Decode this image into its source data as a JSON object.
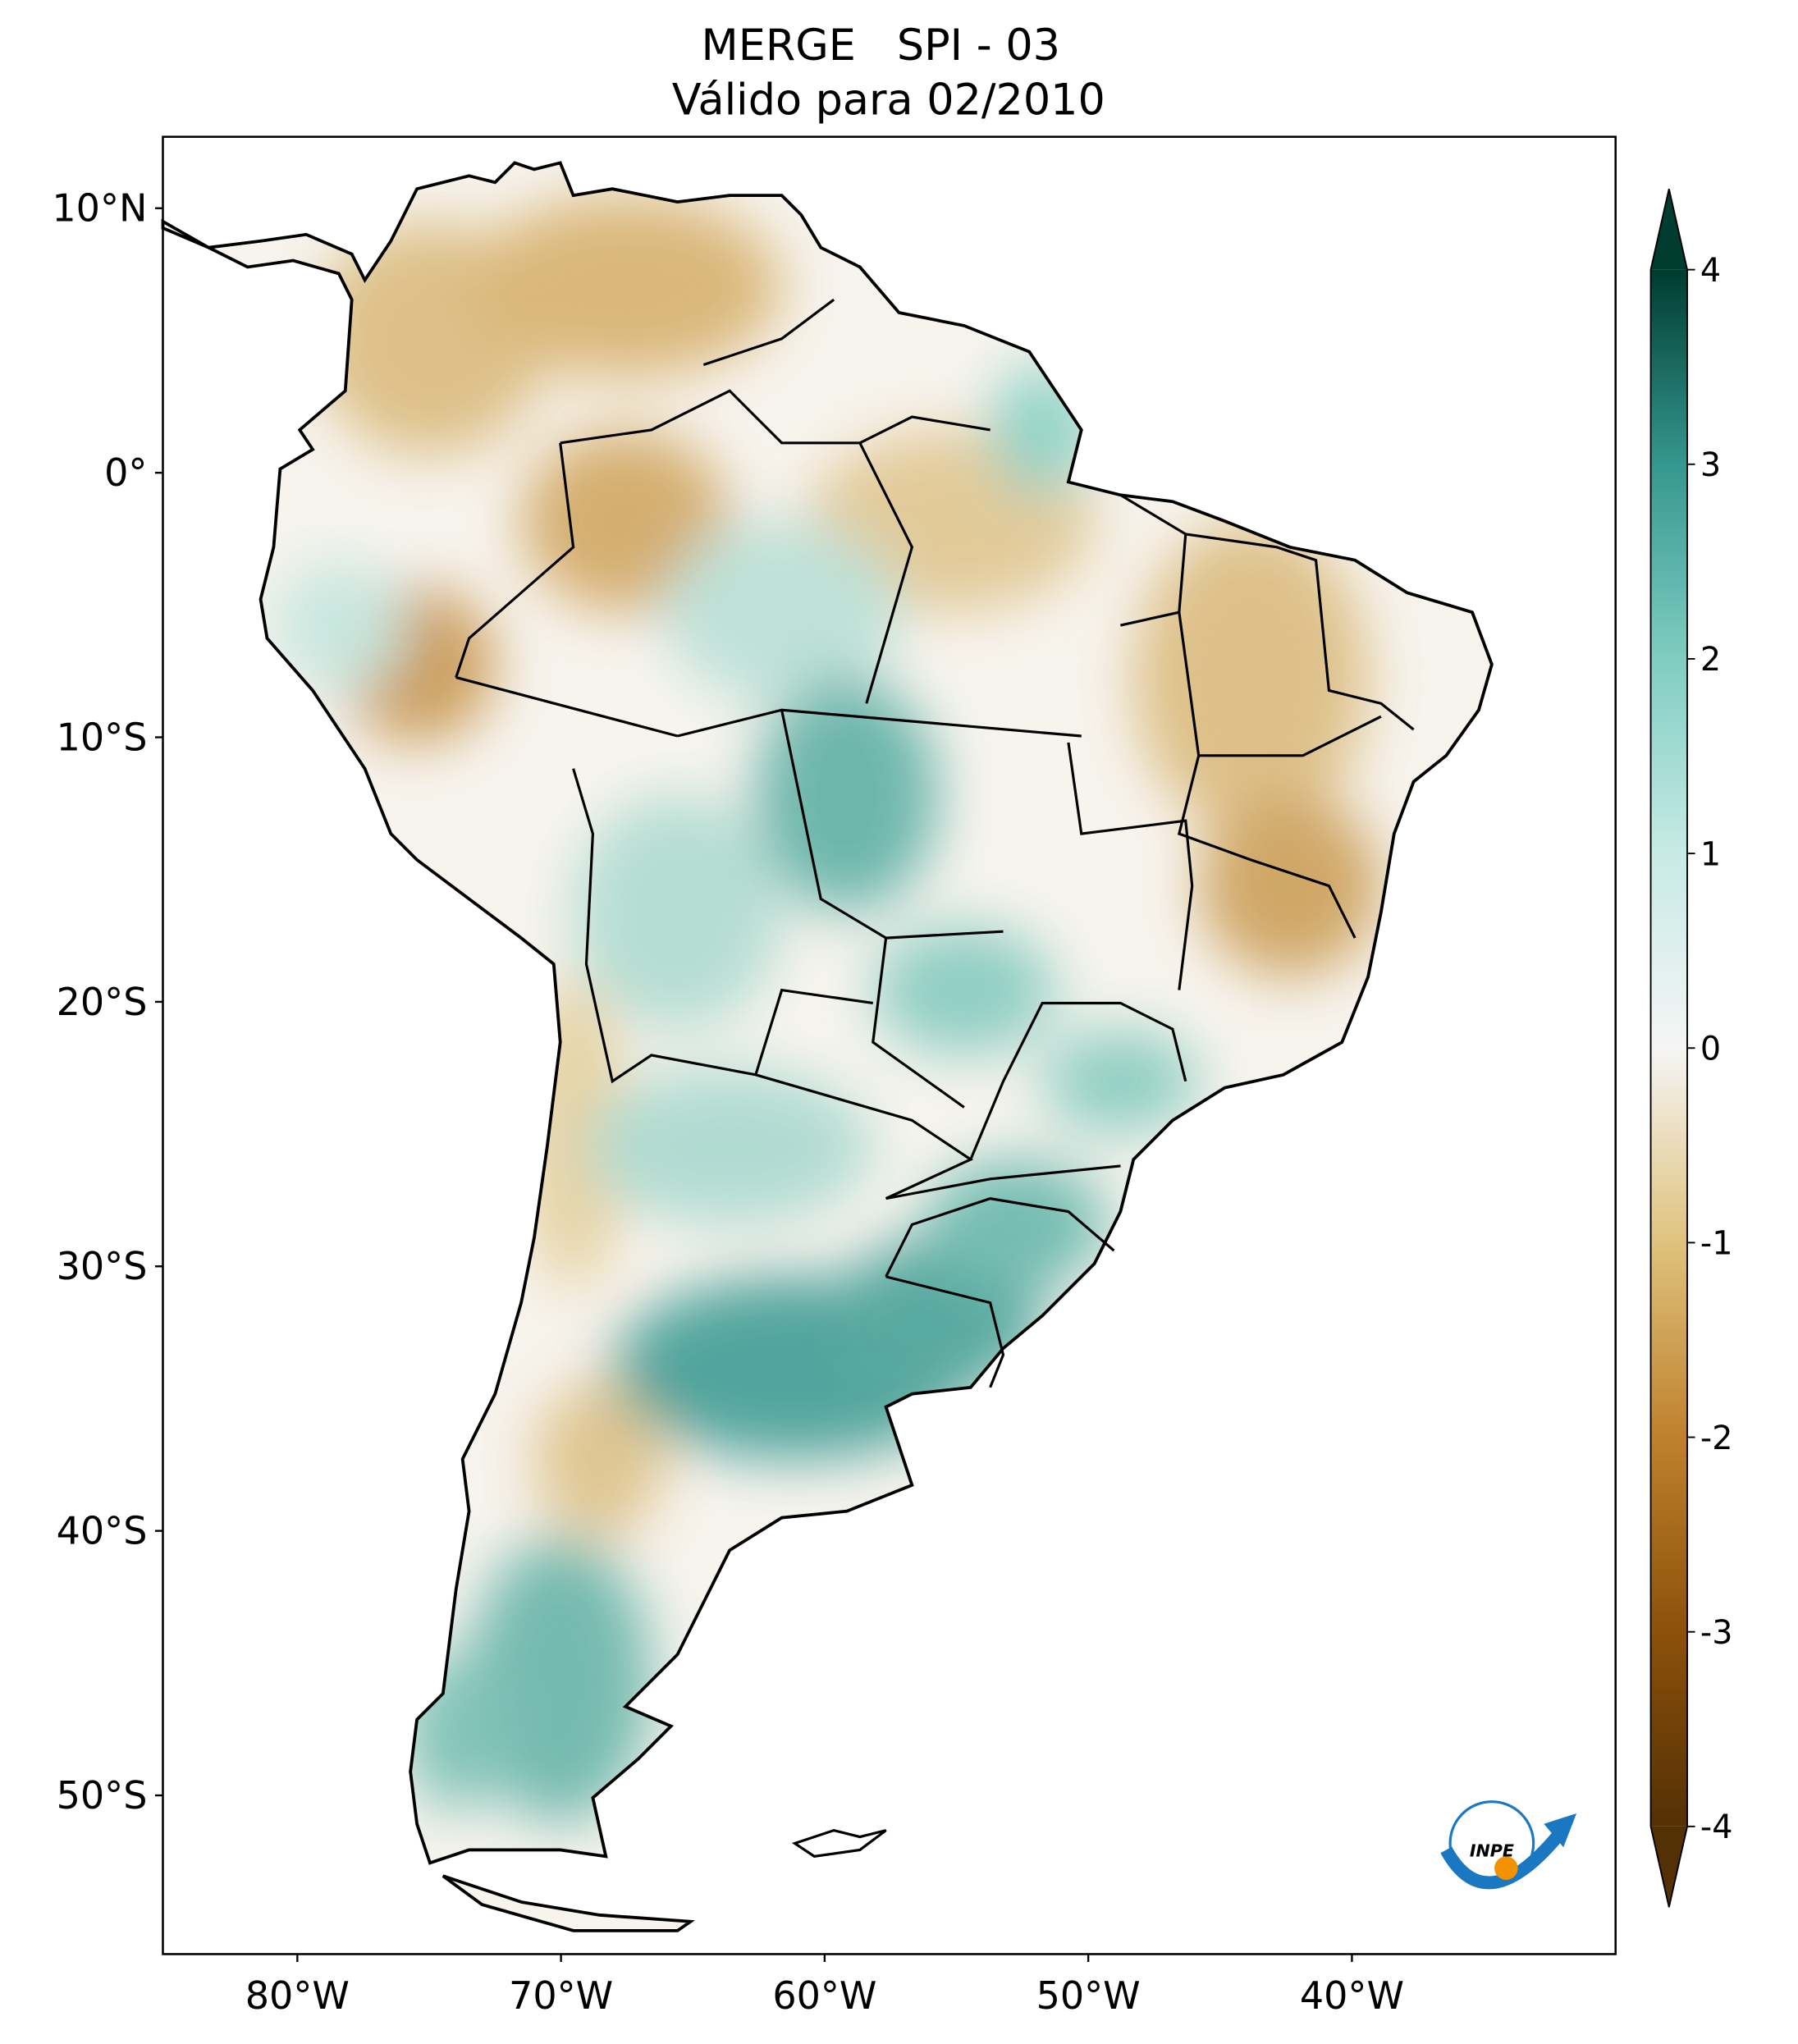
{
  "chart_data": {
    "type": "map",
    "title": "MERGE   SPI - 03",
    "subtitle": "Válido para 02/2010",
    "xlim": [
      -85.1,
      -30.0
    ],
    "ylim": [
      -56.0,
      12.7
    ],
    "xticks": [
      {
        "value": -80,
        "label": "80°W"
      },
      {
        "value": -70,
        "label": "70°W"
      },
      {
        "value": -60,
        "label": "60°W"
      },
      {
        "value": -50,
        "label": "50°W"
      },
      {
        "value": -40,
        "label": "40°W"
      }
    ],
    "yticks": [
      {
        "value": 10,
        "label": "10°N"
      },
      {
        "value": 0,
        "label": "0°"
      },
      {
        "value": -10,
        "label": "10°S"
      },
      {
        "value": -20,
        "label": "20°S"
      },
      {
        "value": -30,
        "label": "30°S"
      },
      {
        "value": -40,
        "label": "40°S"
      },
      {
        "value": -50,
        "label": "50°S"
      }
    ],
    "colorbar": {
      "lim": [
        -4,
        4
      ],
      "ticks": [
        -4,
        -3,
        -2,
        -1,
        0,
        1,
        2,
        3,
        4
      ],
      "colors": [
        "#543005",
        "#8c510a",
        "#bf812d",
        "#dfc27d",
        "#f5f5f5",
        "#c7eae5",
        "#80cdc1",
        "#35978f",
        "#003c30"
      ]
    },
    "logo": "INPE"
  }
}
